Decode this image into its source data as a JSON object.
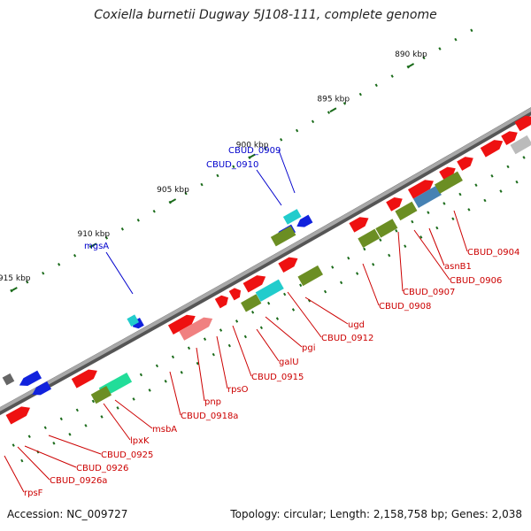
{
  "title": "Coxiella burnetii Dugway 5J108-111, complete genome",
  "footer": {
    "accession": "Accession: NC_009727",
    "summary": "Topology: circular; Length: 2,158,758 bp; Genes: 2,038"
  },
  "colors": {
    "forward_cds": "#ee1111",
    "reverse_cds": "#1122dd",
    "rna": "#22cccc",
    "cog": "#6b8e23",
    "label_red": "#cc0000",
    "label_blue": "#0000cc",
    "backbone": "#808080",
    "tick": "#1a6b1a"
  },
  "scale_labels": [
    "890 kbp",
    "895 kbp",
    "900 kbp",
    "905 kbp",
    "910 kbp",
    "915 kbp"
  ],
  "gene_labels": [
    {
      "text": "CBUD_0909",
      "color": "blue"
    },
    {
      "text": "CBUD_0910",
      "color": "blue"
    },
    {
      "text": "mgsA",
      "color": "blue"
    },
    {
      "text": "CBUD_0904",
      "color": "red"
    },
    {
      "text": "asnB1",
      "color": "red"
    },
    {
      "text": "CBUD_0906",
      "color": "red"
    },
    {
      "text": "CBUD_0907",
      "color": "red"
    },
    {
      "text": "CBUD_0908",
      "color": "red"
    },
    {
      "text": "ugd",
      "color": "red"
    },
    {
      "text": "CBUD_0912",
      "color": "red"
    },
    {
      "text": "pgi",
      "color": "red"
    },
    {
      "text": "galU",
      "color": "red"
    },
    {
      "text": "CBUD_0915",
      "color": "red"
    },
    {
      "text": "rpsO",
      "color": "red"
    },
    {
      "text": "pnp",
      "color": "red"
    },
    {
      "text": "CBUD_0918a",
      "color": "red"
    },
    {
      "text": "msbA",
      "color": "red"
    },
    {
      "text": "lpxK",
      "color": "red"
    },
    {
      "text": "CBUD_0925",
      "color": "red"
    },
    {
      "text": "CBUD_0926",
      "color": "red"
    },
    {
      "text": "CBUD_0926a",
      "color": "red"
    },
    {
      "text": "rpsF",
      "color": "red"
    }
  ]
}
